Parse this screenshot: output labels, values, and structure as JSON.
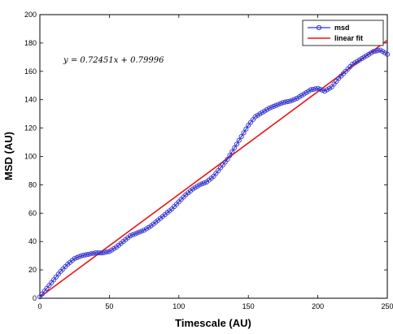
{
  "chart_data": {
    "type": "line",
    "xlabel": "Timescale (AU)",
    "ylabel": "MSD (AU)",
    "xlim": [
      0,
      250
    ],
    "ylim": [
      0,
      200
    ],
    "xticks": [
      0,
      50,
      100,
      150,
      200,
      250
    ],
    "yticks": [
      0,
      20,
      40,
      60,
      80,
      100,
      120,
      140,
      160,
      180,
      200
    ],
    "grid": false,
    "legend_position": "top-right",
    "annotation": "y = 0.72451x + 0.79996",
    "series": [
      {
        "name": "msd",
        "style": "line-with-circle-markers",
        "color": "#3333cc",
        "x": [
          0,
          5,
          10,
          15,
          20,
          25,
          30,
          35,
          40,
          45,
          50,
          55,
          60,
          65,
          70,
          75,
          80,
          85,
          90,
          95,
          100,
          105,
          110,
          115,
          120,
          125,
          130,
          135,
          140,
          145,
          150,
          155,
          160,
          165,
          170,
          175,
          180,
          185,
          190,
          195,
          200,
          205,
          210,
          215,
          220,
          225,
          230,
          235,
          240,
          245,
          250
        ],
        "y": [
          1,
          7,
          13,
          19,
          24,
          28,
          30,
          31,
          32,
          32,
          33,
          36,
          40,
          44,
          46,
          48,
          51,
          55,
          59,
          63,
          68,
          73,
          77,
          80,
          82,
          86,
          92,
          98,
          106,
          114,
          122,
          128,
          131,
          134,
          136,
          138,
          139,
          141,
          144,
          147,
          148,
          146,
          149,
          155,
          160,
          165,
          168,
          171,
          174,
          175,
          172
        ]
      },
      {
        "name": "linear fit",
        "style": "line",
        "color": "#ee1111",
        "x": [
          0,
          250
        ],
        "y": [
          0.8,
          181.93
        ]
      }
    ]
  }
}
